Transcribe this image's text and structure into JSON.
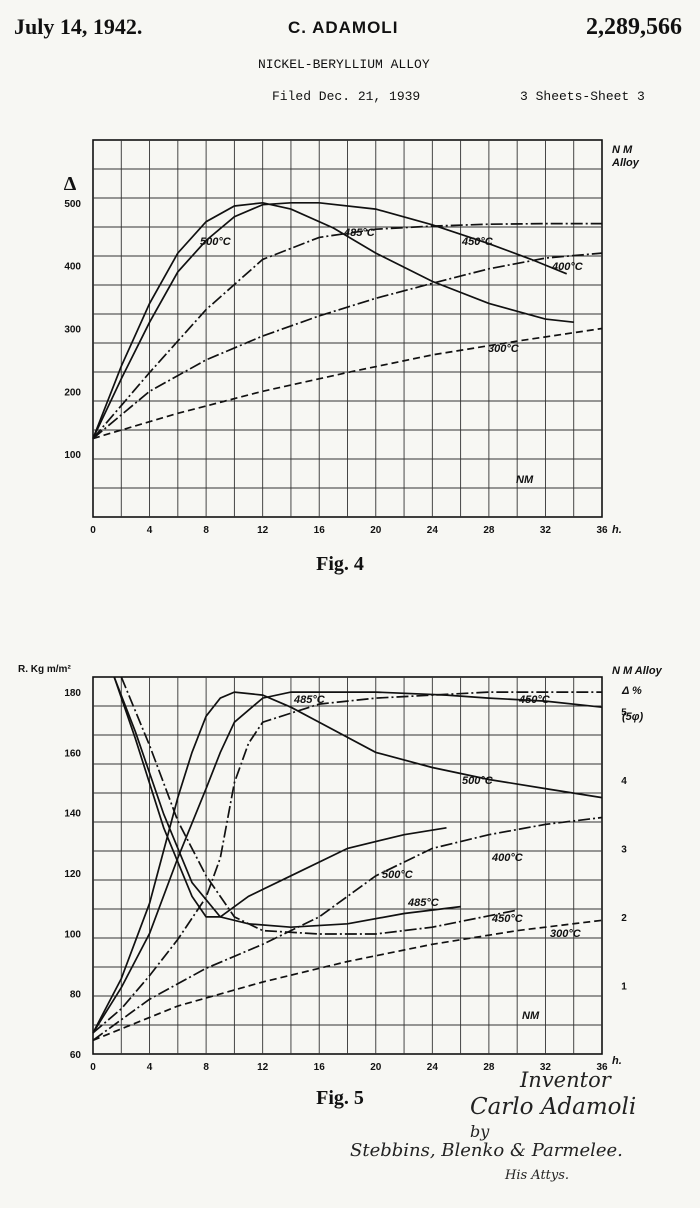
{
  "header": {
    "date": "July 14, 1942.",
    "inventor": "C. ADAMOLI",
    "patent_number": "2,289,566",
    "title": "NICKEL-BERYLLIUM ALLOY",
    "filed": "Filed Dec. 21, 1939",
    "sheets": "3 Sheets-Sheet 3"
  },
  "chart_data": [
    {
      "type": "line",
      "caption": "Fig. 4",
      "ylabel": "Δ",
      "xunit": "h.",
      "right_label_1": "N M",
      "right_label_2": "Alloy",
      "x_ticks": [
        0,
        4,
        8,
        12,
        16,
        20,
        24,
        28,
        32,
        36
      ],
      "y_ticks": [
        100,
        200,
        300,
        400,
        500
      ],
      "xlim": [
        0,
        36
      ],
      "ylim": [
        0,
        600
      ],
      "grid": true,
      "series": [
        {
          "name": "500°C",
          "style": "solid",
          "points": [
            [
              0,
              125
            ],
            [
              2,
              240
            ],
            [
              4,
              340
            ],
            [
              6,
              420
            ],
            [
              8,
              470
            ],
            [
              10,
              495
            ],
            [
              12,
              500
            ],
            [
              14,
              490
            ],
            [
              17,
              460
            ],
            [
              20,
              420
            ],
            [
              24,
              375
            ],
            [
              28,
              340
            ],
            [
              32,
              315
            ],
            [
              34,
              310
            ]
          ]
        },
        {
          "name": "485°C",
          "style": "solid",
          "points": [
            [
              0,
              125
            ],
            [
              2,
              220
            ],
            [
              4,
              310
            ],
            [
              6,
              390
            ],
            [
              8,
              440
            ],
            [
              10,
              478
            ],
            [
              12,
              497
            ],
            [
              14,
              500
            ],
            [
              16,
              500
            ],
            [
              20,
              490
            ],
            [
              24,
              465
            ],
            [
              28,
              435
            ],
            [
              31,
              410
            ],
            [
              33.5,
              387
            ]
          ]
        },
        {
          "name": "450°C",
          "style": "dashdot",
          "points": [
            [
              0,
              125
            ],
            [
              4,
              230
            ],
            [
              8,
              330
            ],
            [
              12,
              410
            ],
            [
              16,
              445
            ],
            [
              20,
              458
            ],
            [
              24,
              463
            ],
            [
              28,
              466
            ],
            [
              32,
              467
            ],
            [
              36,
              467
            ]
          ]
        },
        {
          "name": "400°C",
          "style": "dashdot",
          "points": [
            [
              0,
              125
            ],
            [
              4,
              200
            ],
            [
              8,
              250
            ],
            [
              12,
              288
            ],
            [
              16,
              320
            ],
            [
              20,
              348
            ],
            [
              24,
              372
            ],
            [
              28,
              395
            ],
            [
              32,
              412
            ],
            [
              36,
              420
            ]
          ]
        },
        {
          "name": "300°C",
          "style": "dashed",
          "points": [
            [
              0,
              125
            ],
            [
              6,
              165
            ],
            [
              12,
              200
            ],
            [
              18,
              230
            ],
            [
              24,
              258
            ],
            [
              30,
              280
            ],
            [
              36,
              300
            ]
          ]
        }
      ],
      "annotations": [
        "500°C",
        "485°C",
        "450°C",
        "400°C",
        "300°C",
        "NM"
      ]
    },
    {
      "type": "line",
      "caption": "Fig. 5",
      "ylabel": "R. Kg m/m²",
      "xunit": "h.",
      "right_label_1": "N M Alloy",
      "right_label_2": "Δ %",
      "right_label_3": "(5φ)",
      "x_ticks": [
        0,
        4,
        8,
        12,
        16,
        20,
        24,
        28,
        32,
        36
      ],
      "y_ticks": [
        60,
        80,
        100,
        120,
        140,
        160,
        180
      ],
      "y2_ticks": [
        1,
        2,
        3,
        4,
        5
      ],
      "xlim": [
        0,
        36
      ],
      "ylim": [
        60,
        185
      ],
      "y2lim": [
        0,
        5.5
      ],
      "grid": true,
      "strength_series": [
        {
          "name": "500°C",
          "style": "solid",
          "points": [
            [
              0,
              67
            ],
            [
              2,
              85
            ],
            [
              4,
              110
            ],
            [
              6,
              145
            ],
            [
              7,
              160
            ],
            [
              8,
              172
            ],
            [
              9,
              178
            ],
            [
              10,
              180
            ],
            [
              12,
              179
            ],
            [
              14,
              175
            ],
            [
              16,
              170
            ],
            [
              20,
              160
            ],
            [
              24,
              155
            ],
            [
              28,
              151
            ],
            [
              32,
              148
            ],
            [
              36,
              145
            ]
          ]
        },
        {
          "name": "485°C",
          "style": "solid",
          "points": [
            [
              0,
              67
            ],
            [
              2,
              82
            ],
            [
              4,
              100
            ],
            [
              6,
              125
            ],
            [
              8,
              148
            ],
            [
              9,
              160
            ],
            [
              10,
              170
            ],
            [
              12,
              178
            ],
            [
              14,
              180
            ],
            [
              20,
              180
            ],
            [
              25,
              179
            ],
            [
              28,
              178
            ],
            [
              32,
              177
            ],
            [
              36,
              175
            ]
          ]
        },
        {
          "name": "450°C",
          "style": "dashdot",
          "points": [
            [
              0,
              67
            ],
            [
              2,
              75
            ],
            [
              4,
              86
            ],
            [
              6,
              98
            ],
            [
              8,
              112
            ],
            [
              9,
              125
            ],
            [
              10,
              150
            ],
            [
              11,
              163
            ],
            [
              12,
              170
            ],
            [
              16,
              176
            ],
            [
              20,
              178
            ],
            [
              24,
              179
            ],
            [
              28,
              180
            ],
            [
              32,
              180
            ],
            [
              36,
              180
            ]
          ]
        }
      ],
      "elongation_series": [
        {
          "name": "500°C",
          "style": "solid",
          "points": [
            [
              1.5,
              5.5
            ],
            [
              3,
              4.6
            ],
            [
              5,
              3.3
            ],
            [
              7,
              2.3
            ],
            [
              8,
              2.0
            ],
            [
              9,
              2.0
            ],
            [
              11,
              2.3
            ],
            [
              14,
              2.6
            ],
            [
              18,
              3.0
            ],
            [
              22,
              3.2
            ],
            [
              25,
              3.3
            ]
          ]
        },
        {
          "name": "485°C",
          "style": "solid",
          "points": [
            [
              1.5,
              5.5
            ],
            [
              3,
              4.7
            ],
            [
              5,
              3.5
            ],
            [
              7,
              2.5
            ],
            [
              9,
              2.0
            ],
            [
              11,
              1.9
            ],
            [
              14,
              1.85
            ],
            [
              18,
              1.9
            ],
            [
              22,
              2.05
            ],
            [
              26,
              2.15
            ]
          ]
        },
        {
          "name": "450°C",
          "style": "dashdot",
          "points": [
            [
              2,
              5.5
            ],
            [
              4,
              4.5
            ],
            [
              6,
              3.4
            ],
            [
              8,
              2.6
            ],
            [
              10,
              2.0
            ],
            [
              12,
              1.8
            ],
            [
              16,
              1.75
            ],
            [
              20,
              1.75
            ],
            [
              24,
              1.85
            ],
            [
              30,
              2.1
            ]
          ]
        },
        {
          "name": "400°C",
          "style": "dashdot",
          "points": [
            [
              0,
              0.2
            ],
            [
              4,
              0.8
            ],
            [
              8,
              1.25
            ],
            [
              12,
              1.6
            ],
            [
              16,
              2.0
            ],
            [
              20,
              2.6
            ],
            [
              24,
              3.0
            ],
            [
              28,
              3.2
            ],
            [
              32,
              3.35
            ],
            [
              36,
              3.45
            ]
          ]
        },
        {
          "name": "300°C",
          "style": "dashed",
          "points": [
            [
              0,
              0.2
            ],
            [
              6,
              0.7
            ],
            [
              12,
              1.05
            ],
            [
              18,
              1.35
            ],
            [
              24,
              1.6
            ],
            [
              30,
              1.8
            ],
            [
              36,
              1.95
            ]
          ]
        }
      ],
      "annotations": [
        "485°C",
        "450°C",
        "500°C",
        "500°C",
        "485°C",
        "400°C",
        "450°C",
        "300°C",
        "NM"
      ]
    }
  ],
  "signature": {
    "line1": "Inventor",
    "line2": "Carlo Adamoli",
    "line3": "by",
    "line4": "Stebbins, Blenko & Parmelee.",
    "line5": "His Attys."
  }
}
